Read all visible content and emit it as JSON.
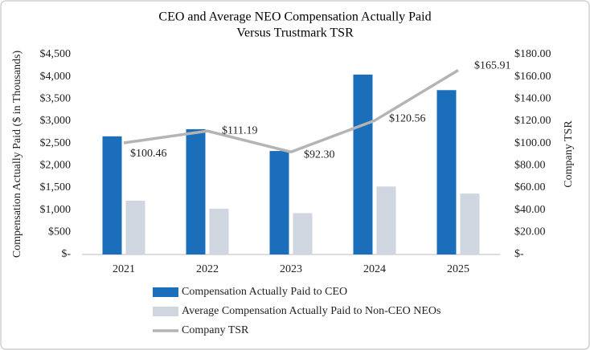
{
  "chart_data": {
    "type": "bar_line",
    "title": "CEO and Average NEO Compensation Actually Paid",
    "subtitle": "Versus Trustmark TSR",
    "y_label": "Compensation Actually Paid ($ in Thousands)",
    "y2_label": "Company TSR",
    "categories": [
      "2021",
      "2022",
      "2023",
      "2024",
      "2025"
    ],
    "series": [
      {
        "name": "Compensation Actually Paid to CEO",
        "type": "bar",
        "color": "#1b6fba",
        "values": [
          2660,
          2820,
          2330,
          4050,
          3700
        ]
      },
      {
        "name": "Average Compensation Actually Paid to Non-CEO NEOs",
        "type": "bar",
        "color": "#cfd6e0",
        "values": [
          1210,
          1030,
          930,
          1530,
          1370
        ]
      },
      {
        "name": "Company TSR",
        "type": "line",
        "axis": "y2",
        "color": "#b4b4b4",
        "values": [
          100.46,
          111.19,
          92.3,
          120.56,
          165.91
        ],
        "value_labels": [
          "$100.46",
          "$111.19",
          "$92.30",
          "$120.56",
          "$165.91"
        ]
      }
    ],
    "ylim": [
      0,
      4500
    ],
    "yticks": [
      {
        "value": 0,
        "label": "$-"
      },
      {
        "value": 500,
        "label": "$500"
      },
      {
        "value": 1000,
        "label": "$1,000"
      },
      {
        "value": 1500,
        "label": "$1,500"
      },
      {
        "value": 2000,
        "label": "$2,000"
      },
      {
        "value": 2500,
        "label": "$2,500"
      },
      {
        "value": 3000,
        "label": "$3,000"
      },
      {
        "value": 3500,
        "label": "$3,500"
      },
      {
        "value": 4000,
        "label": "$4,000"
      },
      {
        "value": 4500,
        "label": "$4,500"
      }
    ],
    "y2lim": [
      0,
      180
    ],
    "y2ticks": [
      {
        "value": 0,
        "label": "$-"
      },
      {
        "value": 20,
        "label": "$20.00"
      },
      {
        "value": 40,
        "label": "$40.00"
      },
      {
        "value": 60,
        "label": "$60.00"
      },
      {
        "value": 80,
        "label": "$80.00"
      },
      {
        "value": 100,
        "label": "$100.00"
      },
      {
        "value": 120,
        "label": "$120.00"
      },
      {
        "value": 140,
        "label": "$140.00"
      },
      {
        "value": 160,
        "label": "$160.00"
      },
      {
        "value": 180,
        "label": "$180.00"
      }
    ],
    "legend": "bottom"
  }
}
